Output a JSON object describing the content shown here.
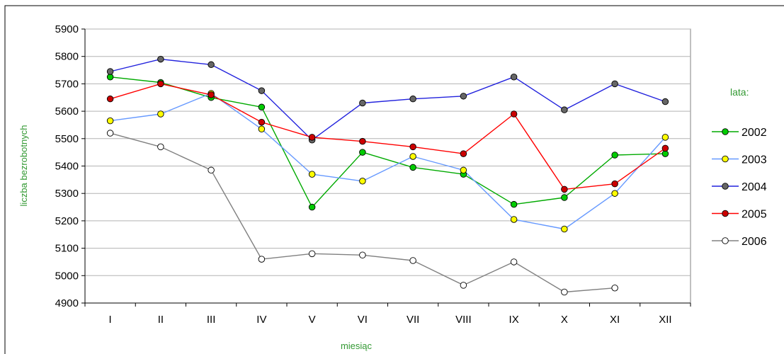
{
  "chart_data": {
    "type": "line",
    "title": "",
    "xlabel": "miesiąc",
    "ylabel": "liczba bezrobotnych",
    "legend_title": "lata:",
    "legend_position": "right",
    "grid": true,
    "ylim": [
      4900,
      5900
    ],
    "yticks": [
      4900,
      5000,
      5100,
      5200,
      5300,
      5400,
      5500,
      5600,
      5700,
      5800,
      5900
    ],
    "categories": [
      "I",
      "II",
      "III",
      "IV",
      "V",
      "VI",
      "VII",
      "VIII",
      "IX",
      "X",
      "XI",
      "XII"
    ],
    "series": [
      {
        "name": "2002",
        "line_color": "#00aa00",
        "marker_color": "#00cc00",
        "values": [
          5725,
          5705,
          5650,
          5615,
          5250,
          5450,
          5395,
          5370,
          5260,
          5285,
          5440,
          5445
        ]
      },
      {
        "name": "2003",
        "line_color": "#6699ff",
        "marker_color": "#ffff00",
        "values": [
          5565,
          5590,
          5665,
          5535,
          5370,
          5345,
          5435,
          5385,
          5205,
          5170,
          5300,
          5505
        ]
      },
      {
        "name": "2004",
        "line_color": "#2222dd",
        "marker_color": "#666666",
        "values": [
          5745,
          5790,
          5770,
          5675,
          5495,
          5630,
          5645,
          5655,
          5725,
          5605,
          5700,
          5635
        ]
      },
      {
        "name": "2005",
        "line_color": "#ff0000",
        "marker_color": "#cc0000",
        "values": [
          5645,
          5700,
          5660,
          5560,
          5505,
          5490,
          5470,
          5445,
          5590,
          5315,
          5335,
          5465
        ]
      },
      {
        "name": "2006",
        "line_color": "#808080",
        "marker_color": "#ffffff",
        "values": [
          5520,
          5470,
          5385,
          5060,
          5080,
          5075,
          5055,
          4965,
          5050,
          4940,
          4955,
          null
        ]
      }
    ]
  }
}
